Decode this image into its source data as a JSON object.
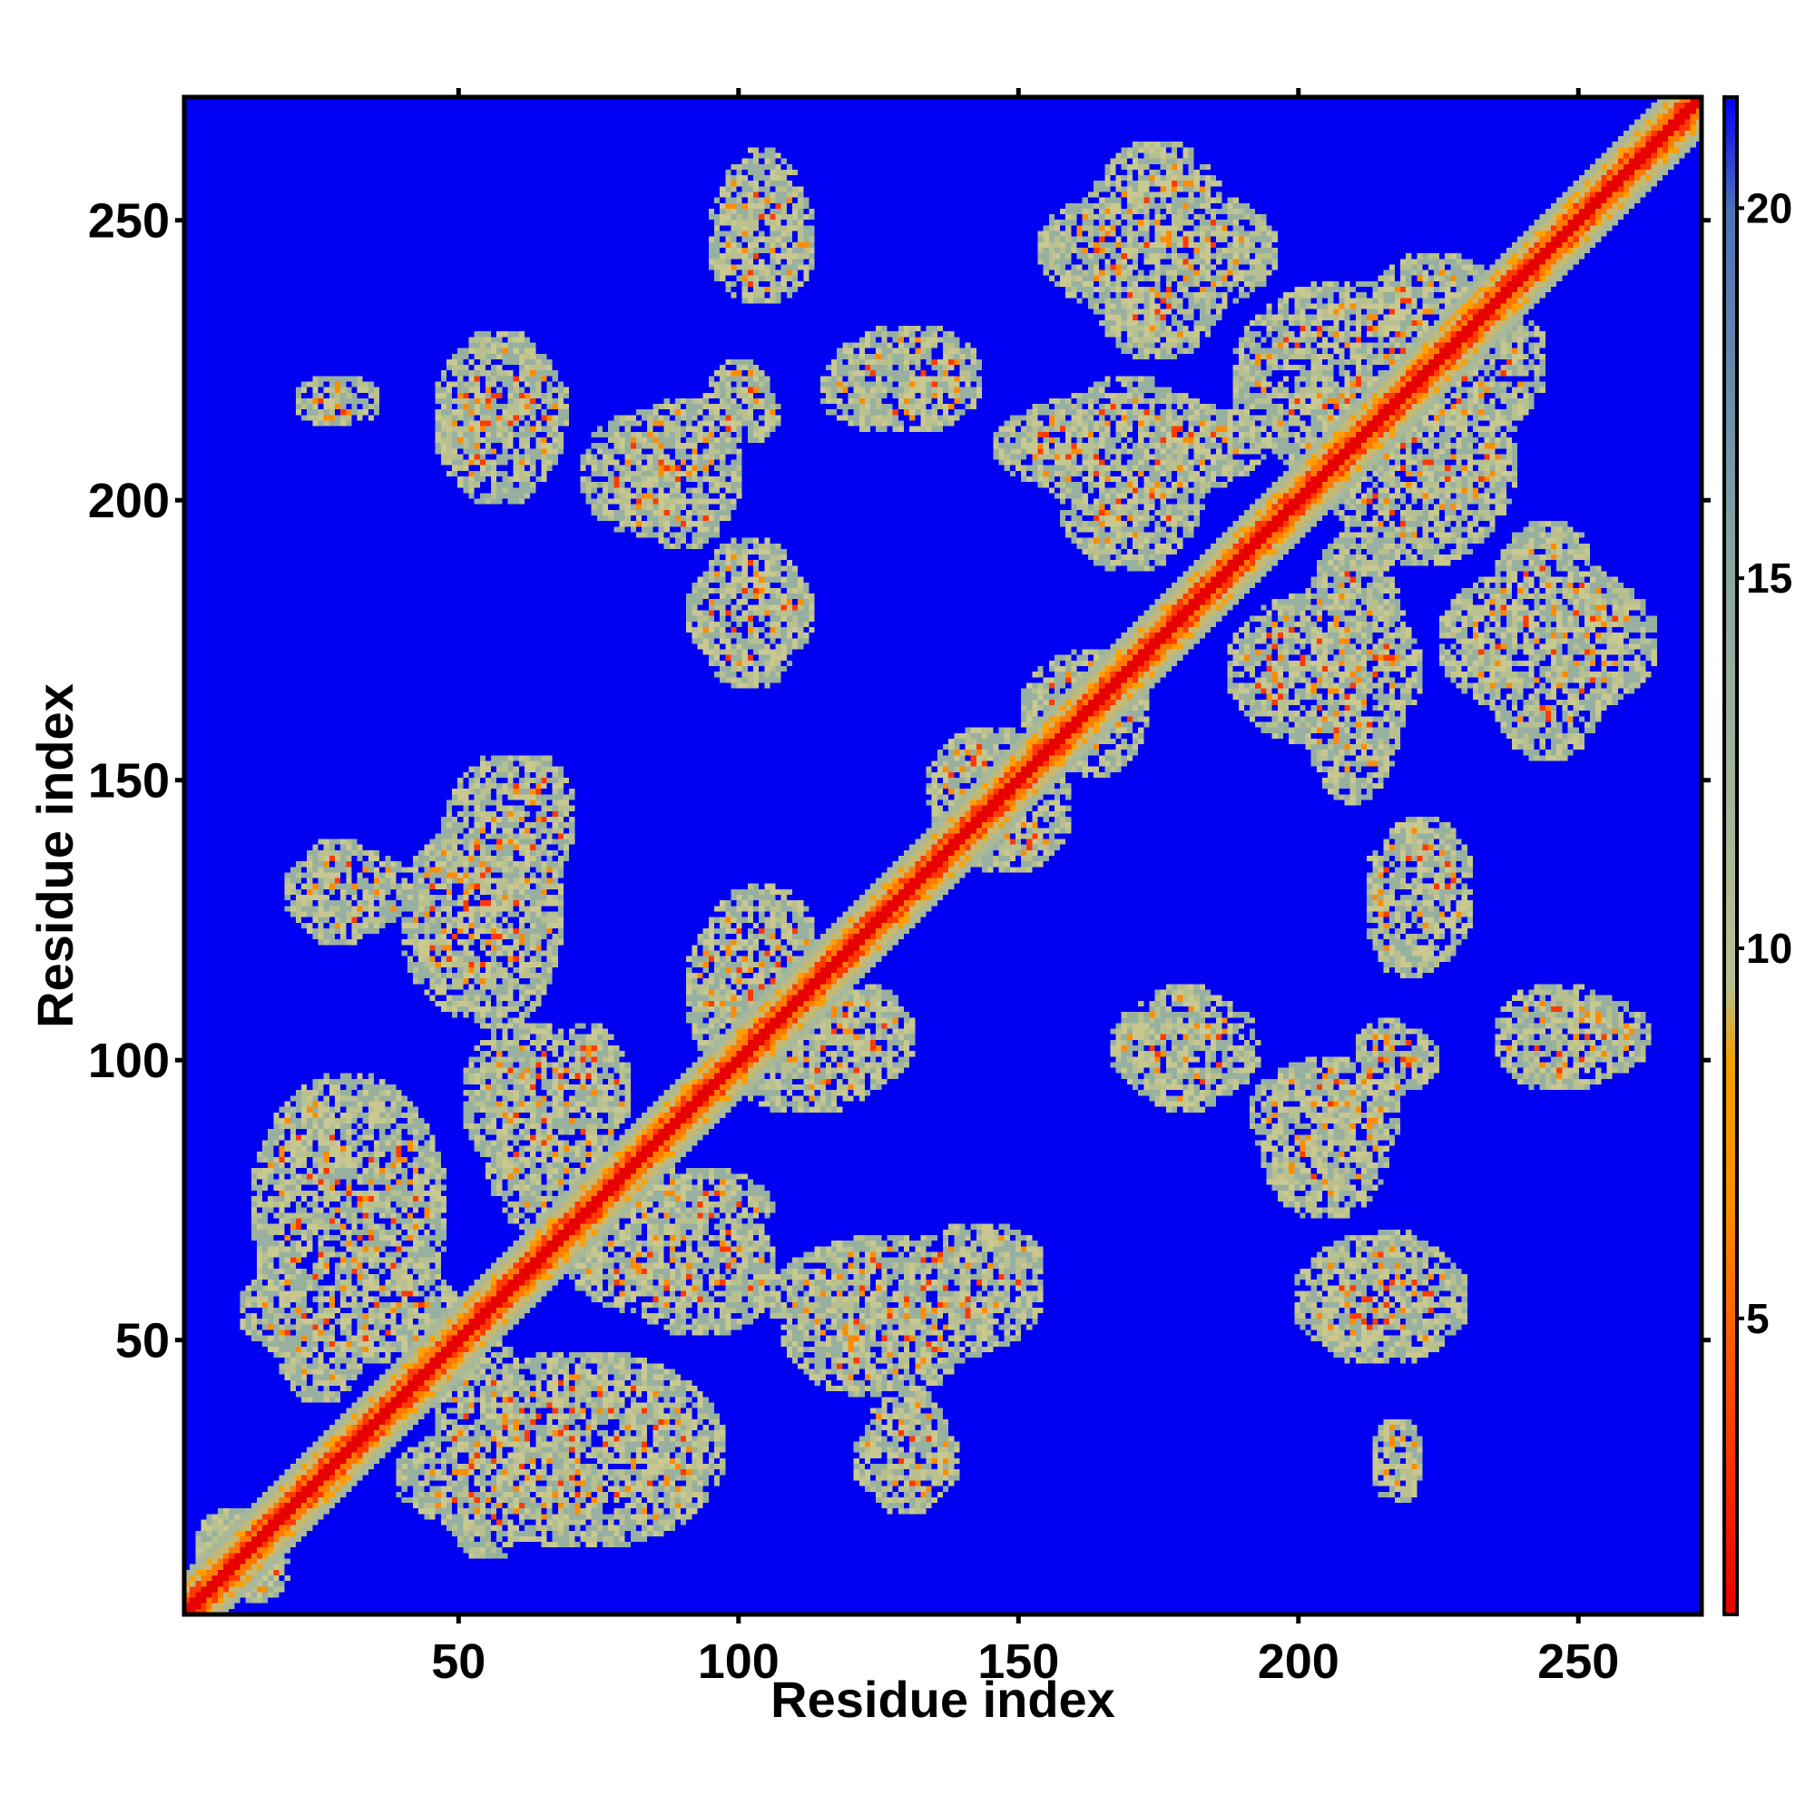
{
  "chart_data": {
    "type": "heatmap",
    "title": "",
    "xlabel": "Residue index",
    "ylabel": "Residue index",
    "xlim": [
      1,
      272
    ],
    "ylim": [
      1,
      272
    ],
    "n_residues": 272,
    "xticks": [
      50,
      100,
      150,
      200,
      250
    ],
    "yticks": [
      50,
      100,
      150,
      200,
      250
    ],
    "xtick_labels": [
      "50",
      "100",
      "150",
      "200",
      "250"
    ],
    "ytick_labels": [
      "50",
      "100",
      "150",
      "200",
      "250"
    ],
    "colorbar": {
      "range": [
        1,
        21.5
      ],
      "ticks": [
        5,
        10,
        15,
        20
      ],
      "tick_labels": [
        "5",
        "10",
        "15",
        "20"
      ],
      "colors": [
        {
          "value": 1,
          "color": "#e60000"
        },
        {
          "value": 4,
          "color": "#ff4a00"
        },
        {
          "value": 6.5,
          "color": "#ff8c00"
        },
        {
          "value": 8.5,
          "color": "#f0a000"
        },
        {
          "value": 9.5,
          "color": "#b8c090"
        },
        {
          "value": 15,
          "color": "#8aa8a0"
        },
        {
          "value": 20,
          "color": "#4a72b8"
        },
        {
          "value": 21.5,
          "color": "#0000f5"
        }
      ]
    },
    "background_color": "#0000f5",
    "diagonal": {
      "core_color": "#e60000",
      "band_color": "#ff7a00",
      "halo_color": "#b8c090"
    },
    "contact_regions": [
      {
        "cx": 12,
        "cy": 10,
        "rx": 8,
        "ry": 8
      },
      {
        "cx": 30,
        "cy": 72,
        "rx": 18,
        "ry": 26
      },
      {
        "cx": 30,
        "cy": 55,
        "rx": 20,
        "ry": 10
      },
      {
        "cx": 58,
        "cy": 25,
        "rx": 20,
        "ry": 10
      },
      {
        "cx": 80,
        "cy": 24,
        "rx": 15,
        "ry": 10
      },
      {
        "cx": 30,
        "cy": 130,
        "rx": 12,
        "ry": 8
      },
      {
        "cx": 53,
        "cy": 125,
        "rx": 14,
        "ry": 18
      },
      {
        "cx": 63,
        "cy": 143,
        "rx": 8,
        "ry": 12
      },
      {
        "cx": 62,
        "cy": 93,
        "rx": 12,
        "ry": 14
      },
      {
        "cx": 87,
        "cy": 63,
        "rx": 18,
        "ry": 9
      },
      {
        "cx": 92,
        "cy": 73,
        "rx": 15,
        "ry": 8
      },
      {
        "cx": 130,
        "cy": 57,
        "rx": 25,
        "ry": 12
      },
      {
        "cx": 130,
        "cy": 28,
        "rx": 10,
        "ry": 8
      },
      {
        "cx": 104,
        "cy": 120,
        "rx": 10,
        "ry": 12
      },
      {
        "cx": 112,
        "cy": 102,
        "rx": 16,
        "ry": 12
      },
      {
        "cx": 148,
        "cy": 145,
        "rx": 12,
        "ry": 12
      },
      {
        "cx": 162,
        "cy": 163,
        "rx": 12,
        "ry": 10
      },
      {
        "cx": 86,
        "cy": 205,
        "rx": 15,
        "ry": 12
      },
      {
        "cx": 100,
        "cy": 216,
        "rx": 8,
        "ry": 6
      },
      {
        "cx": 102,
        "cy": 180,
        "rx": 12,
        "ry": 10
      },
      {
        "cx": 58,
        "cy": 217,
        "rx": 12,
        "ry": 9
      },
      {
        "cx": 104,
        "cy": 247,
        "rx": 10,
        "ry": 12
      },
      {
        "cx": 128,
        "cy": 220,
        "rx": 14,
        "ry": 8
      },
      {
        "cx": 175,
        "cy": 245,
        "rx": 22,
        "ry": 12
      },
      {
        "cx": 170,
        "cy": 210,
        "rx": 25,
        "ry": 10
      },
      {
        "cx": 210,
        "cy": 222,
        "rx": 22,
        "ry": 18
      },
      {
        "cx": 230,
        "cy": 225,
        "rx": 15,
        "ry": 14
      },
      {
        "cx": 205,
        "cy": 170,
        "rx": 18,
        "ry": 14
      },
      {
        "cx": 245,
        "cy": 175,
        "rx": 20,
        "ry": 14
      },
      {
        "cx": 222,
        "cy": 130,
        "rx": 10,
        "ry": 14
      },
      {
        "cx": 180,
        "cy": 102,
        "rx": 14,
        "ry": 10
      },
      {
        "cx": 205,
        "cy": 90,
        "rx": 14,
        "ry": 10
      },
      {
        "cx": 218,
        "cy": 100,
        "rx": 8,
        "ry": 6
      },
      {
        "cx": 250,
        "cy": 104,
        "rx": 14,
        "ry": 8
      },
      {
        "cx": 215,
        "cy": 57,
        "rx": 16,
        "ry": 12
      },
      {
        "cx": 218,
        "cy": 28,
        "rx": 5,
        "ry": 8
      }
    ]
  }
}
